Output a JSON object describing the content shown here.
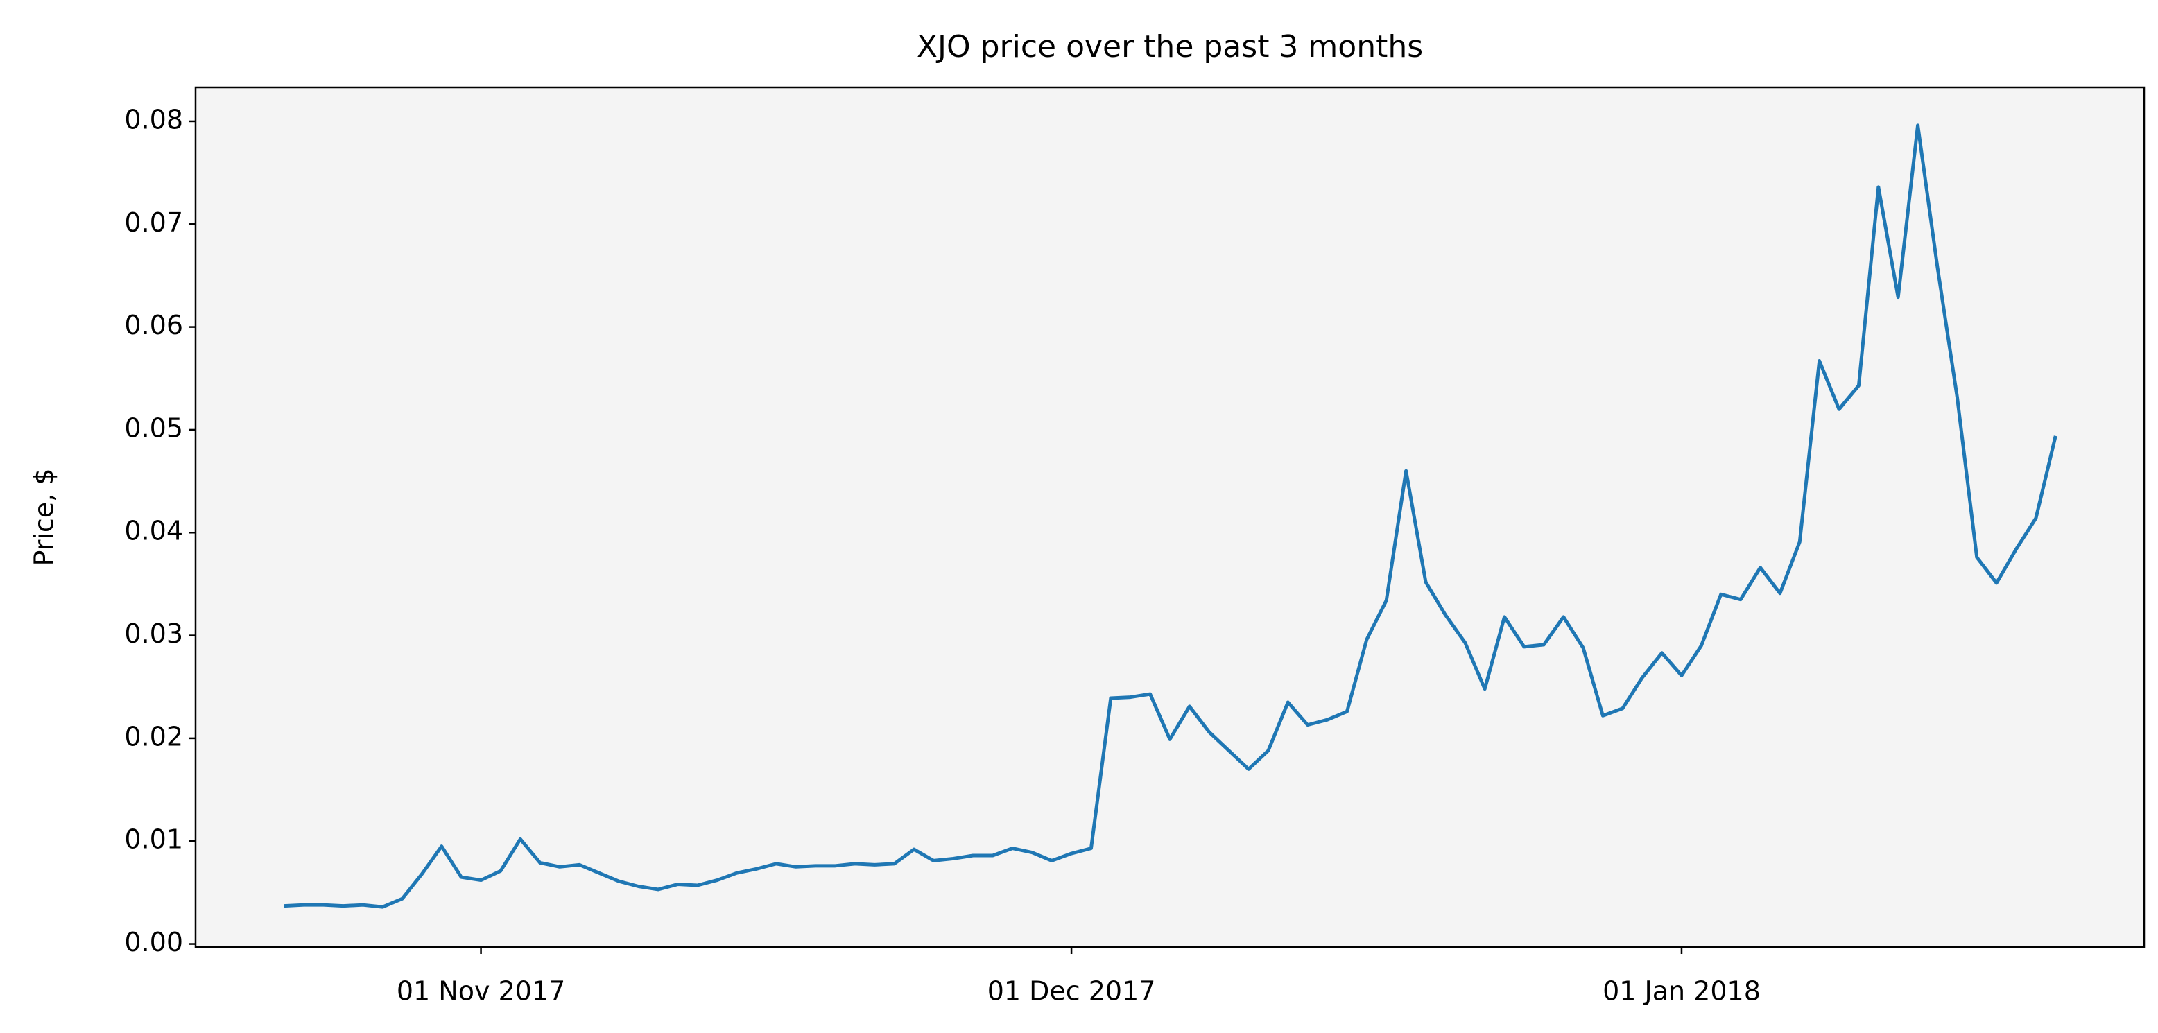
{
  "chart_data": {
    "type": "line",
    "title": "XJO price over the past 3 months",
    "y_label": "Price, $",
    "x": [
      "2017-10-22",
      "2017-10-23",
      "2017-10-24",
      "2017-10-25",
      "2017-10-26",
      "2017-10-27",
      "2017-10-28",
      "2017-10-29",
      "2017-10-30",
      "2017-10-31",
      "2017-11-01",
      "2017-11-02",
      "2017-11-03",
      "2017-11-04",
      "2017-11-05",
      "2017-11-06",
      "2017-11-07",
      "2017-11-08",
      "2017-11-09",
      "2017-11-10",
      "2017-11-11",
      "2017-11-12",
      "2017-11-13",
      "2017-11-14",
      "2017-11-15",
      "2017-11-16",
      "2017-11-17",
      "2017-11-18",
      "2017-11-19",
      "2017-11-20",
      "2017-11-21",
      "2017-11-22",
      "2017-11-23",
      "2017-11-24",
      "2017-11-25",
      "2017-11-26",
      "2017-11-27",
      "2017-11-28",
      "2017-11-29",
      "2017-11-30",
      "2017-12-01",
      "2017-12-02",
      "2017-12-03",
      "2017-12-04",
      "2017-12-05",
      "2017-12-06",
      "2017-12-07",
      "2017-12-08",
      "2017-12-09",
      "2017-12-10",
      "2017-12-11",
      "2017-12-12",
      "2017-12-13",
      "2017-12-14",
      "2017-12-15",
      "2017-12-16",
      "2017-12-17",
      "2017-12-18",
      "2017-12-19",
      "2017-12-20",
      "2017-12-21",
      "2017-12-22",
      "2017-12-23",
      "2017-12-24",
      "2017-12-25",
      "2017-12-26",
      "2017-12-27",
      "2017-12-28",
      "2017-12-29",
      "2017-12-30",
      "2017-12-31",
      "2018-01-01",
      "2018-01-02",
      "2018-01-03",
      "2018-01-04",
      "2018-01-05",
      "2018-01-06",
      "2018-01-07",
      "2018-01-08",
      "2018-01-09",
      "2018-01-10",
      "2018-01-11",
      "2018-01-12",
      "2018-01-13",
      "2018-01-14",
      "2018-01-15",
      "2018-01-16",
      "2018-01-17",
      "2018-01-18",
      "2018-01-19",
      "2018-01-20"
    ],
    "series": [
      {
        "color": "#1f77b4",
        "values": [
          0.0037,
          0.0038,
          0.0038,
          0.0037,
          0.0038,
          0.0036,
          0.0044,
          0.0068,
          0.0095,
          0.0065,
          0.0062,
          0.0071,
          0.0102,
          0.0079,
          0.0075,
          0.0077,
          0.0069,
          0.0061,
          0.0056,
          0.0053,
          0.0058,
          0.0057,
          0.0062,
          0.0069,
          0.0073,
          0.0078,
          0.0075,
          0.0076,
          0.0076,
          0.0078,
          0.0077,
          0.0078,
          0.0092,
          0.0081,
          0.0083,
          0.0086,
          0.0086,
          0.0093,
          0.0089,
          0.0081,
          0.0088,
          0.0093,
          0.0239,
          0.024,
          0.0243,
          0.0199,
          0.0231,
          0.0206,
          0.0188,
          0.017,
          0.0188,
          0.0235,
          0.0213,
          0.0218,
          0.0226,
          0.0296,
          0.0334,
          0.046,
          0.0352,
          0.032,
          0.0293,
          0.0248,
          0.0318,
          0.0289,
          0.0291,
          0.0318,
          0.0288,
          0.0222,
          0.0229,
          0.0259,
          0.0283,
          0.0261,
          0.029,
          0.034,
          0.0335,
          0.0366,
          0.0341,
          0.0391,
          0.0567,
          0.052,
          0.0543,
          0.0736,
          0.0629,
          0.0796,
          0.0658,
          0.0532,
          0.0376,
          0.0351,
          0.0384,
          0.0414,
          0.0494
        ]
      }
    ],
    "xlim": [
      "2017-10-17T12:00:00Z",
      "2018-01-24T12:00:00Z"
    ],
    "xticks": [
      {
        "value": "2017-11-01",
        "label": "01 Nov 2017"
      },
      {
        "value": "2017-12-01",
        "label": "01 Dec 2017"
      },
      {
        "value": "2018-01-01",
        "label": "01 Jan 2018"
      }
    ],
    "ylim": [
      -0.0003,
      0.0833
    ],
    "yticks": [
      {
        "value": 0,
        "label": "0.00"
      },
      {
        "value": 0.01,
        "label": "0.01"
      },
      {
        "value": 0.02,
        "label": "0.02"
      },
      {
        "value": 0.03,
        "label": "0.03"
      },
      {
        "value": 0.04,
        "label": "0.04"
      },
      {
        "value": 0.05,
        "label": "0.05"
      },
      {
        "value": 0.06,
        "label": "0.06"
      },
      {
        "value": 0.07,
        "label": "0.07"
      },
      {
        "value": 0.08,
        "label": "0.08"
      }
    ],
    "plot_background": "#f4f4f4",
    "grid": false
  }
}
